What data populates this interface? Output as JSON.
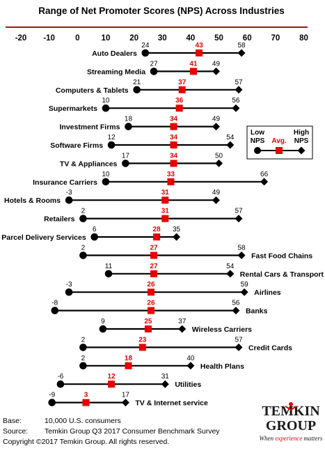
{
  "chart_data": {
    "type": "range-dot",
    "title": "Range of Net Promoter Scores (NPS) Across Industries",
    "x_ticks": [
      -20,
      -10,
      0,
      10,
      20,
      30,
      40,
      50,
      60,
      70,
      80
    ],
    "xlim": [
      -20,
      80
    ],
    "legend": {
      "low": "Low NPS",
      "avg": "Avg.",
      "high": "High NPS",
      "placement": "right"
    },
    "industries": [
      {
        "name": "Auto Dealers",
        "low": 24,
        "avg": 43,
        "high": 58,
        "label_side": "left"
      },
      {
        "name": "Streaming Media",
        "low": 27,
        "avg": 41,
        "high": 49,
        "label_side": "left"
      },
      {
        "name": "Computers & Tablets",
        "low": 21,
        "avg": 37,
        "high": 57,
        "label_side": "left"
      },
      {
        "name": "Supermarkets",
        "low": 10,
        "avg": 36,
        "high": 56,
        "label_side": "left"
      },
      {
        "name": "Investment Firms",
        "low": 18,
        "avg": 34,
        "high": 49,
        "label_side": "left"
      },
      {
        "name": "Software Firms",
        "low": 12,
        "avg": 34,
        "high": 54,
        "label_side": "left"
      },
      {
        "name": "TV & Appliances",
        "low": 17,
        "avg": 34,
        "high": 50,
        "label_side": "left"
      },
      {
        "name": "Insurance Carriers",
        "low": 10,
        "avg": 33,
        "high": 66,
        "label_side": "left"
      },
      {
        "name": "Hotels & Rooms",
        "low": -3,
        "avg": 31,
        "high": 49,
        "label_side": "left"
      },
      {
        "name": "Retailers",
        "low": 2,
        "avg": 31,
        "high": 57,
        "label_side": "left"
      },
      {
        "name": "Parcel Delivery Services",
        "low": 6,
        "avg": 28,
        "high": 35,
        "label_side": "left"
      },
      {
        "name": "Fast Food Chains",
        "low": 2,
        "avg": 27,
        "high": 58,
        "label_side": "right"
      },
      {
        "name": "Rental Cars & Transport",
        "low": 11,
        "avg": 27,
        "high": 54,
        "label_side": "right"
      },
      {
        "name": "Airlines",
        "low": -3,
        "avg": 26,
        "high": 59,
        "label_side": "right"
      },
      {
        "name": "Banks",
        "low": -8,
        "avg": 26,
        "high": 56,
        "label_side": "right"
      },
      {
        "name": "Wireless Carriers",
        "low": 9,
        "avg": 25,
        "high": 37,
        "label_side": "right"
      },
      {
        "name": "Credit Cards",
        "low": 2,
        "avg": 23,
        "high": 57,
        "label_side": "right"
      },
      {
        "name": "Health Plans",
        "low": 2,
        "avg": 18,
        "high": 40,
        "label_side": "right"
      },
      {
        "name": "Utilities",
        "low": -6,
        "avg": 12,
        "high": 31,
        "label_side": "right"
      },
      {
        "name": "TV & Internet service",
        "low": -9,
        "avg": 3,
        "high": 17,
        "label_side": "right"
      }
    ],
    "colors": {
      "avg": "#e60000",
      "title_rule": "#9b1b1b",
      "points": "#000000"
    }
  },
  "footer": {
    "base_label": "Base:",
    "base_value": "10,000 U.S. consumers",
    "source_label": "Source:",
    "source_value": "Temkin Group Q3 2017 Consumer Benchmark Survey",
    "copyright": "Copyright ©2017 Temkin Group. All rights reserved."
  },
  "logo": {
    "line1": "TEMKIN",
    "line2": "GROUP",
    "tagline_pre": "When ",
    "tagline_em": "experience",
    "tagline_post": " matters",
    "icon": "person-figure-icon"
  }
}
